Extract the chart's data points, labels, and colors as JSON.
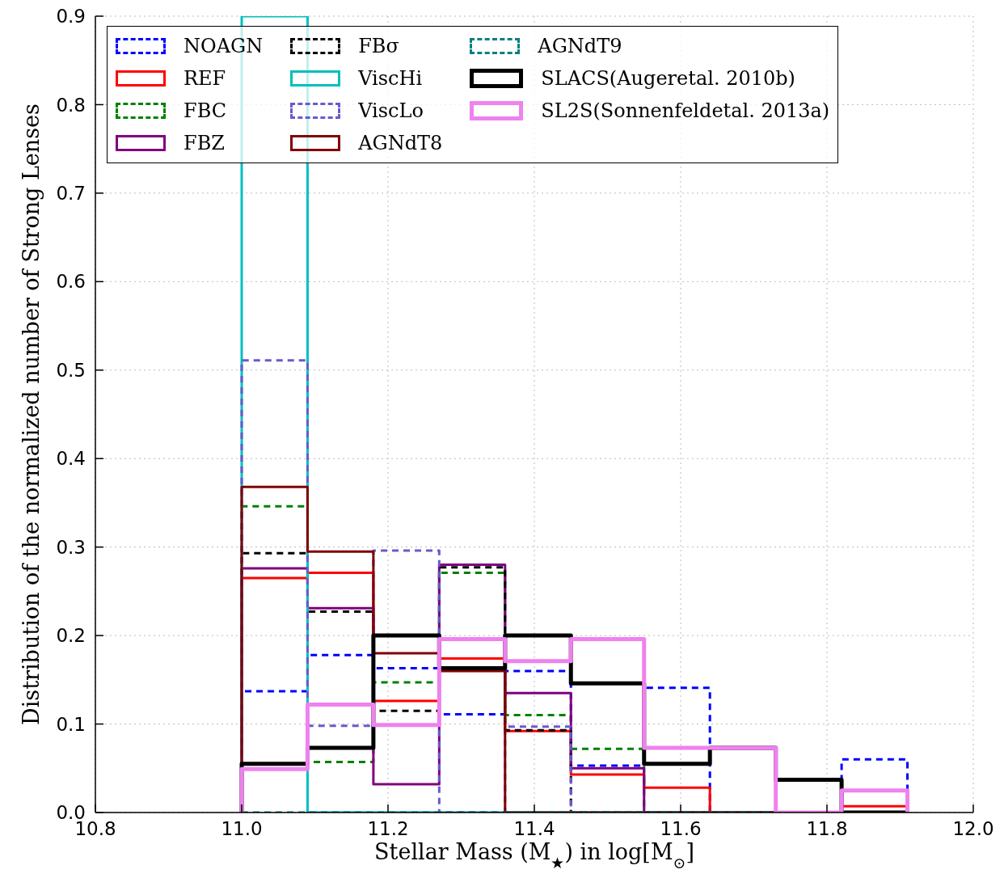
{
  "chart_data": {
    "type": "histogram",
    "xlabel": "Stellar Mass (M$_{★}$) in log[M$_{⊙}$]",
    "ylabel": "Distribution of the normalized number of Strong Lenses",
    "bins": [
      11.0,
      11.09,
      11.18,
      11.27,
      11.36,
      11.45,
      11.55,
      11.64,
      11.73,
      11.82,
      11.91
    ],
    "series": [
      {
        "name": "NOAGN",
        "color": "#0000ff",
        "line_style": "dashed",
        "values": [
          0.137,
          0.178,
          0.163,
          0.111,
          0.16,
          0.053,
          0.141,
          0,
          0,
          0.06
        ]
      },
      {
        "name": "REF",
        "color": "#ff0000",
        "line_style": "solid",
        "values": [
          0.265,
          0.271,
          0.126,
          0.174,
          0.092,
          0.043,
          0.028,
          0,
          0,
          0.007
        ]
      },
      {
        "name": "FBC",
        "color": "#008000",
        "line_style": "dashed",
        "values": [
          0.346,
          0.057,
          0.147,
          0.271,
          0.11,
          0.072,
          0,
          0,
          0,
          0
        ]
      },
      {
        "name": "FBZ",
        "color": "#800080",
        "line_style": "solid",
        "values": [
          0.276,
          0.231,
          0.032,
          0.28,
          0.135,
          0.05,
          0,
          0,
          0,
          0
        ]
      },
      {
        "name": "FBσ",
        "color": "#000000",
        "line_style": "dashed",
        "values": [
          0.293,
          0.227,
          0.115,
          0.277,
          0.093,
          0,
          0,
          0,
          0,
          0
        ]
      },
      {
        "name": "ViscHi",
        "color": "#00bfbf",
        "line_style": "solid",
        "values": [
          0.9,
          0,
          0,
          0,
          0,
          0,
          0,
          0,
          0,
          0
        ]
      },
      {
        "name": "ViscLo",
        "color": "#6a5acd",
        "line_style": "dashed",
        "values": [
          0.511,
          0.098,
          0.296,
          0,
          0.097,
          0,
          0,
          0,
          0,
          0
        ]
      },
      {
        "name": "AGNdT8",
        "color": "#800000",
        "line_style": "solid",
        "values": [
          0.368,
          0.295,
          0.18,
          0.16,
          0,
          0,
          0,
          0,
          0,
          0
        ]
      },
      {
        "name": "AGNdT9",
        "color": "#008080",
        "line_style": "dashed",
        "values": [
          0,
          0,
          0,
          0,
          0,
          0,
          0,
          0,
          0,
          0
        ]
      },
      {
        "name": "SLACS(Augeretal. 2010b)",
        "color": "#000000",
        "line_style": "solid",
        "values": [
          0.055,
          0.073,
          0.2,
          0.163,
          0.2,
          0.146,
          0.055,
          0.073,
          0.037,
          0
        ]
      },
      {
        "name": "SL2S(Sonnenfeldetal. 2013a)",
        "color": "#ee82ee",
        "line_style": "solid",
        "values": [
          0.049,
          0.122,
          0.099,
          0.196,
          0.171,
          0.196,
          0.073,
          0.073,
          0,
          0.025
        ]
      }
    ],
    "xlim": [
      10.8,
      12.0
    ],
    "xticks": [
      10.8,
      {
        "value": 11.0,
        "label": "11.0"
      },
      11.2,
      11.4,
      11.6,
      11.8,
      {
        "value": 12.0,
        "label": "12.0"
      }
    ],
    "ylim": [
      0,
      0.9
    ],
    "yticks": [
      {
        "value": 0,
        "label": "0.0"
      },
      0.1,
      0.2,
      0.3,
      0.4,
      0.5,
      0.6,
      0.7,
      0.8,
      0.9
    ],
    "grid": true,
    "legend": "top"
  }
}
